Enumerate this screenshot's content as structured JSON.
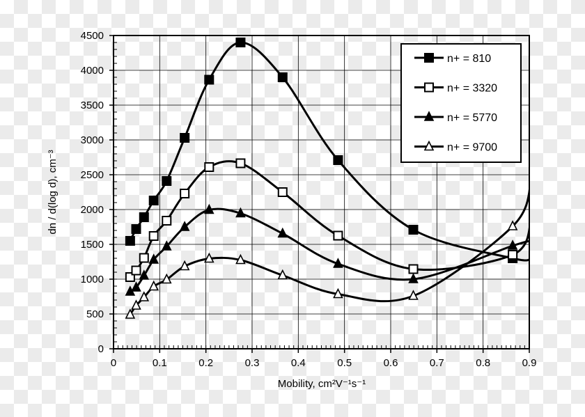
{
  "chart_data": {
    "type": "line",
    "title": "",
    "xlabel": "Mobility, cm²V⁻¹s⁻¹",
    "ylabel": "dn / d(log d), cm⁻³",
    "xlim": [
      0,
      0.9
    ],
    "ylim": [
      0,
      4500
    ],
    "xticks": [
      "0",
      "0.1",
      "0.2",
      "0.3",
      "0.4",
      "0.5",
      "0.6",
      "0.7",
      "0.8",
      "0.9"
    ],
    "yticks": [
      "0",
      "500",
      "1000",
      "1500",
      "2000",
      "2500",
      "3000",
      "3500",
      "4000",
      "4500"
    ],
    "grid": true,
    "legend_position": "top-right",
    "x": [
      0.036,
      0.049,
      0.066,
      0.087,
      0.115,
      0.154,
      0.207,
      0.275,
      0.366,
      0.486,
      0.649,
      0.864
    ],
    "series": [
      {
        "name": "n+ = 810",
        "marker": "filled-square",
        "values": [
          1550,
          1720,
          1890,
          2130,
          2410,
          3030,
          3865,
          4400,
          3900,
          2710,
          1710,
          1300
        ],
        "curve_end": 1300
      },
      {
        "name": "n+ = 3320",
        "marker": "open-square",
        "values": [
          1030,
          1125,
          1305,
          1620,
          1840,
          2230,
          2610,
          2665,
          2250,
          1625,
          1145,
          1350
        ],
        "curve_end": 1880
      },
      {
        "name": "n+ = 5770",
        "marker": "filled-triangle",
        "values": [
          820,
          880,
          1050,
          1280,
          1470,
          1750,
          1995,
          1945,
          1655,
          1220,
          1000,
          1480
        ],
        "curve_end": 1550
      },
      {
        "name": "n+ = 9700",
        "marker": "open-triangle",
        "values": [
          490,
          620,
          740,
          895,
          995,
          1185,
          1295,
          1275,
          1055,
          785,
          760,
          1760
        ],
        "curve_end": 2440
      }
    ]
  }
}
